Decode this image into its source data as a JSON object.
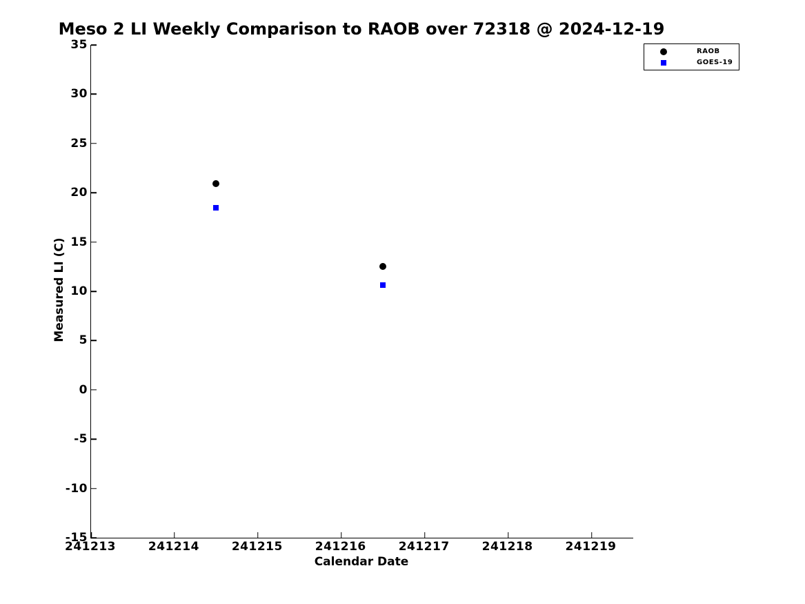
{
  "chart_data": {
    "type": "scatter",
    "title": "Meso 2 LI Weekly Comparison to RAOB over 72318 @ 2024-12-19",
    "xlabel": "Calendar Date",
    "ylabel": "Measured LI (C)",
    "xlim": [
      241213,
      241219.5
    ],
    "ylim": [
      -15,
      35
    ],
    "xticks": [
      241213,
      241214,
      241215,
      241216,
      241217,
      241218,
      241219
    ],
    "yticks": [
      35,
      30,
      25,
      20,
      15,
      10,
      5,
      0,
      -5,
      -10,
      -15
    ],
    "grid": false,
    "legend_position": "top-right-outside-plot",
    "colors": {
      "raob": "#000000",
      "goes19": "#0000ff",
      "axis": "#000000",
      "background": "#ffffff"
    },
    "series": [
      {
        "name": "RAOB",
        "marker": "circle",
        "color": "#000000",
        "marker_size": 10,
        "points": [
          [
            241214.5,
            20.9
          ],
          [
            241216.5,
            12.5
          ]
        ]
      },
      {
        "name": "GOES-19",
        "marker": "square",
        "color": "#0000ff",
        "marker_size": 8,
        "points": [
          [
            241214.5,
            18.5
          ],
          [
            241216.5,
            10.65
          ]
        ]
      }
    ]
  }
}
